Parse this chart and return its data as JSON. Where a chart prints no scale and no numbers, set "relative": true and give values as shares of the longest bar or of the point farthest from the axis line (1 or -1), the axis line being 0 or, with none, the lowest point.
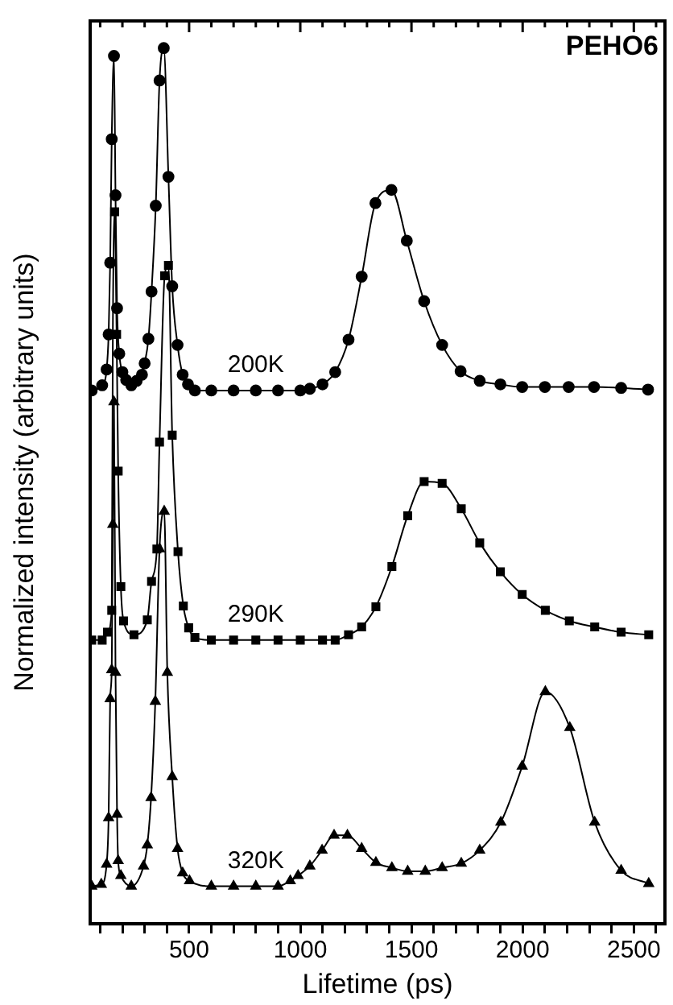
{
  "chart_data": {
    "type": "line",
    "title": "PEHO6",
    "xlabel": "Lifetime (ps)",
    "ylabel": "Normalized intensity (arbitrary units)",
    "relative": true,
    "grid": false,
    "legend": false,
    "xlim": [
      55,
      2640
    ],
    "xticks": [
      {
        "value": 100,
        "label": null
      },
      {
        "value": 200,
        "label": null
      },
      {
        "value": 300,
        "label": null
      },
      {
        "value": 400,
        "label": null
      },
      500,
      {
        "value": 600,
        "label": null
      },
      {
        "value": 700,
        "label": null
      },
      {
        "value": 800,
        "label": null
      },
      {
        "value": 900,
        "label": null
      },
      1000,
      {
        "value": 1100,
        "label": null
      },
      {
        "value": 1200,
        "label": null
      },
      {
        "value": 1300,
        "label": null
      },
      {
        "value": 1400,
        "label": null
      },
      1500,
      {
        "value": 1600,
        "label": null
      },
      {
        "value": 1700,
        "label": null
      },
      {
        "value": 1800,
        "label": null
      },
      {
        "value": 1900,
        "label": null
      },
      2000,
      {
        "value": 2100,
        "label": null
      },
      {
        "value": 2200,
        "label": null
      },
      {
        "value": 2300,
        "label": null
      },
      {
        "value": 2400,
        "label": null
      },
      2500,
      {
        "value": 2600,
        "label": null
      }
    ],
    "series": [
      {
        "name": "200K",
        "color": "#000000",
        "marker": "circle",
        "x": [
          62,
          109,
          129,
          138,
          145,
          152,
          162,
          169,
          176,
          186,
          200,
          217,
          240,
          264,
          288,
          300,
          317,
          331,
          350,
          367,
          386,
          407,
          424,
          448,
          471,
          495,
          526,
          600,
          700,
          800,
          900,
          1000,
          1043,
          1100,
          1157,
          1217,
          1276,
          1338,
          1410,
          1479,
          1557,
          1638,
          1721,
          1807,
          1900,
          1998,
          2100,
          2207,
          2321,
          2443,
          2564
        ],
        "values": [
          0.609,
          0.615,
          0.633,
          0.673,
          0.755,
          0.896,
          0.991,
          0.832,
          0.703,
          0.651,
          0.63,
          0.621,
          0.615,
          0.62,
          0.627,
          0.64,
          0.668,
          0.722,
          0.82,
          0.963,
          1.0,
          0.853,
          0.728,
          0.661,
          0.627,
          0.616,
          0.609,
          0.609,
          0.609,
          0.609,
          0.609,
          0.609,
          0.611,
          0.616,
          0.63,
          0.667,
          0.739,
          0.823,
          0.838,
          0.78,
          0.711,
          0.661,
          0.631,
          0.62,
          0.616,
          0.613,
          0.613,
          0.613,
          0.613,
          0.612,
          0.61
        ]
      },
      {
        "name": "290K",
        "color": "#000000",
        "marker": "square",
        "x": [
          62,
          109,
          133,
          152,
          157,
          165,
          174,
          181,
          193,
          205,
          252,
          312,
          331,
          355,
          367,
          390,
          407,
          424,
          450,
          474,
          498,
          526,
          600,
          700,
          800,
          900,
          1000,
          1100,
          1157,
          1217,
          1276,
          1340,
          1412,
          1483,
          1557,
          1638,
          1724,
          1807,
          1900,
          1998,
          2102,
          2210,
          2324,
          2443,
          2567
        ],
        "values": [
          0.324,
          0.324,
          0.333,
          0.358,
          0.673,
          0.813,
          0.673,
          0.517,
          0.385,
          0.346,
          0.33,
          0.347,
          0.391,
          0.428,
          0.55,
          0.74,
          0.752,
          0.558,
          0.425,
          0.363,
          0.338,
          0.327,
          0.324,
          0.324,
          0.324,
          0.324,
          0.324,
          0.324,
          0.324,
          0.33,
          0.339,
          0.362,
          0.408,
          0.466,
          0.505,
          0.503,
          0.474,
          0.435,
          0.402,
          0.376,
          0.358,
          0.346,
          0.339,
          0.333,
          0.33
        ]
      },
      {
        "name": "320K",
        "color": "#000000",
        "marker": "triangle",
        "x": [
          62,
          105,
          129,
          138,
          145,
          152,
          157,
          162,
          169,
          176,
          181,
          193,
          240,
          295,
          312,
          329,
          348,
          367,
          388,
          402,
          424,
          448,
          471,
          502,
          600,
          700,
          800,
          900,
          955,
          990,
          1043,
          1098,
          1152,
          1212,
          1276,
          1340,
          1412,
          1483,
          1562,
          1638,
          1724,
          1807,
          1902,
          1998,
          2102,
          2212,
          2324,
          2443,
          2567
        ],
        "values": [
          0.043,
          0.045,
          0.068,
          0.121,
          0.257,
          0.29,
          0.456,
          0.596,
          0.287,
          0.125,
          0.072,
          0.055,
          0.043,
          0.066,
          0.09,
          0.144,
          0.254,
          0.428,
          0.471,
          0.287,
          0.168,
          0.086,
          0.058,
          0.049,
          0.043,
          0.043,
          0.043,
          0.043,
          0.049,
          0.055,
          0.066,
          0.084,
          0.101,
          0.101,
          0.086,
          0.07,
          0.064,
          0.06,
          0.06,
          0.064,
          0.069,
          0.084,
          0.116,
          0.18,
          0.265,
          0.224,
          0.116,
          0.061,
          0.046
        ]
      }
    ]
  }
}
